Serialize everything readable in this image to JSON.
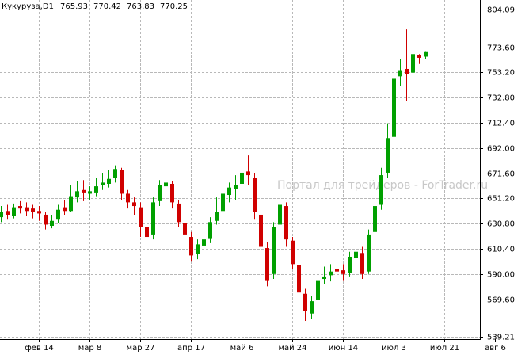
{
  "chart_data": {
    "type": "candlestick",
    "symbol": "Кукуруза,D1",
    "watermark": "Портал для трейдеров - ForTrader.ru",
    "categories": [
      null,
      null,
      null,
      null,
      null,
      null,
      "фев 14",
      null,
      null,
      null,
      null,
      null,
      null,
      null,
      "мар 8",
      null,
      null,
      null,
      null,
      null,
      null,
      null,
      "мар 27",
      null,
      null,
      null,
      null,
      null,
      null,
      null,
      "апр 17",
      null,
      null,
      null,
      null,
      null,
      null,
      null,
      "май 6",
      null,
      null,
      null,
      null,
      null,
      null,
      null,
      "май 24",
      null,
      null,
      null,
      null,
      null,
      null,
      null,
      "июн 14",
      null,
      null,
      null,
      null,
      null,
      null,
      null,
      "июл 3",
      null,
      null,
      null,
      null,
      null,
      null,
      null,
      "июл 21",
      null,
      null,
      null,
      null,
      null,
      null,
      null,
      "авг 6"
    ],
    "open": [
      636,
      641,
      637,
      645,
      644,
      643,
      641,
      638,
      629,
      634,
      644,
      641,
      652,
      658,
      655,
      656,
      662,
      663,
      668,
      674,
      655,
      648,
      644,
      628,
      622,
      649,
      661,
      663,
      647,
      631,
      620,
      606,
      613,
      619,
      633,
      641,
      654,
      659,
      663,
      673,
      668,
      638,
      611,
      590,
      630,
      645,
      617,
      597,
      574,
      558,
      569,
      586,
      589,
      594,
      593,
      591,
      603,
      607,
      592,
      624,
      646,
      672,
      701,
      750,
      756,
      753,
      767,
      765.93,
      null,
      null,
      null,
      null,
      null,
      null,
      null,
      null,
      null,
      null,
      null
    ],
    "high": [
      645,
      646,
      647,
      649,
      648,
      646,
      645,
      640,
      638,
      646,
      650,
      662,
      665,
      666,
      661,
      668,
      672,
      674,
      678,
      676,
      658,
      652,
      648,
      632,
      652,
      666,
      668,
      665,
      650,
      636,
      624,
      618,
      622,
      636,
      652,
      660,
      664,
      670,
      680,
      686,
      672,
      642,
      616,
      632,
      650,
      648,
      620,
      600,
      578,
      572,
      590,
      596,
      598,
      600,
      598,
      608,
      612,
      612,
      626,
      650,
      676,
      712,
      758,
      764,
      788,
      794,
      768,
      770.42,
      null,
      null,
      null,
      null,
      null,
      null,
      null,
      null,
      null,
      null,
      null
    ],
    "low": [
      632,
      634,
      635,
      639,
      637,
      635,
      633,
      626,
      627,
      631,
      638,
      640,
      648,
      649,
      650,
      653,
      658,
      660,
      664,
      650,
      643,
      638,
      620,
      602,
      618,
      645,
      655,
      643,
      628,
      616,
      600,
      602,
      609,
      615,
      630,
      638,
      648,
      650,
      658,
      662,
      634,
      606,
      580,
      586,
      624,
      612,
      594,
      570,
      552,
      554,
      565,
      582,
      584,
      580,
      585,
      588,
      598,
      586,
      590,
      620,
      642,
      668,
      698,
      742,
      730,
      748,
      760,
      763.83,
      null,
      null,
      null,
      null,
      null,
      null,
      null,
      null,
      null,
      null,
      null
    ],
    "close": [
      640,
      638,
      644,
      643,
      641,
      640,
      639,
      630,
      633,
      642,
      641,
      653,
      657,
      656,
      657,
      661,
      664,
      667,
      675,
      655,
      648,
      645,
      628,
      620,
      648,
      662,
      664,
      648,
      632,
      622,
      605,
      614,
      618,
      632,
      640,
      655,
      660,
      662,
      672,
      670,
      640,
      612,
      585,
      628,
      646,
      618,
      598,
      575,
      560,
      568,
      585,
      588,
      592,
      592,
      590,
      604,
      608,
      590,
      622,
      645,
      670,
      700,
      748,
      755,
      752,
      768,
      765,
      770.25,
      null,
      null,
      null,
      null,
      null,
      null,
      null,
      null,
      null,
      null,
      null
    ],
    "up_color": "#00a000",
    "down_color": "#d00000",
    "ylim": [
      539.21,
      804.09
    ],
    "yticks": [
      804.09,
      {
        "value": 773.6,
        "label": "773.60"
      },
      {
        "value": 753.2,
        "label": "753.20"
      },
      {
        "value": 732.8,
        "label": "732.80"
      },
      {
        "value": 712.4,
        "label": "712.40"
      },
      {
        "value": 692,
        "label": "692.00"
      },
      {
        "value": 671.6,
        "label": "671.60"
      },
      {
        "value": 651.2,
        "label": "651.20"
      },
      {
        "value": 630.8,
        "label": "630.80"
      },
      {
        "value": 610.4,
        "label": "610.40"
      },
      {
        "value": 590,
        "label": "590.00"
      },
      {
        "value": 569.6,
        "label": "569.60"
      },
      539.21
    ],
    "grid": true
  }
}
